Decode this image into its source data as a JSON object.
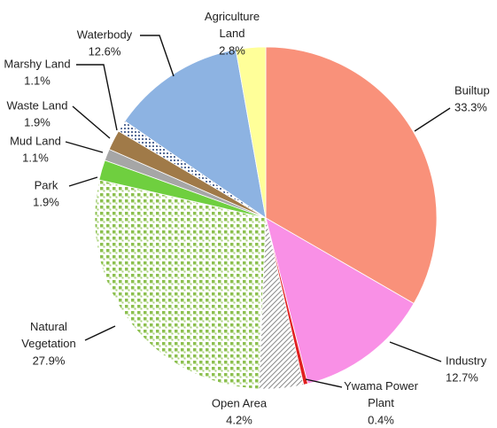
{
  "chart_data": {
    "type": "pie",
    "categories": [
      "Builtup",
      "Industry",
      "Ywama Power Plant",
      "Open Area",
      "Natural Vegetation",
      "Park",
      "Mud Land",
      "Waste Land",
      "Marshy Land",
      "Waterbody",
      "Agriculture Land"
    ],
    "values": [
      33.3,
      12.7,
      0.4,
      4.2,
      27.9,
      1.9,
      1.1,
      1.9,
      1.1,
      12.6,
      2.8
    ],
    "value_labels": [
      "33.3%",
      "12.7%",
      "0.4%",
      "4.2%",
      "27.9%",
      "1.9%",
      "1.1%",
      "1.9%",
      "1.1%",
      "12.6%",
      "2.8%"
    ],
    "colors": [
      "#f9917a",
      "#f990e6",
      "#e02020",
      "url(#hatch)",
      "url(#dots-green)",
      "#6fcf3f",
      "#a6a6a6",
      "#a07a48",
      "url(#dots-blue)",
      "#8db3e2",
      "#ffff99"
    ]
  }
}
